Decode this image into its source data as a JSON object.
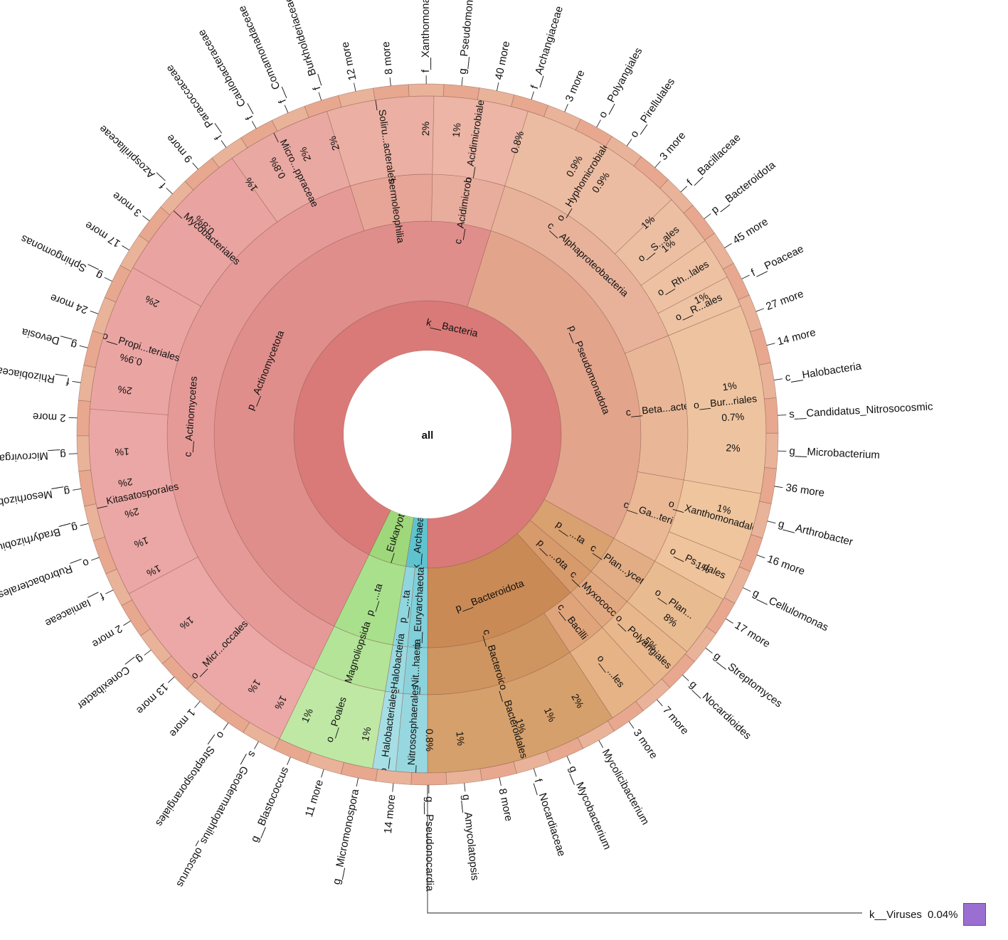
{
  "chart_data": {
    "type": "sunburst",
    "title": "",
    "center_label": "all",
    "rings": [
      [
        {
          "label": "k__Bacteria",
          "value": 92.8,
          "color": "#d97a78"
        },
        {
          "label": "k__Archaea",
          "value": 2.6,
          "color": "#5fc3cf"
        },
        {
          "label": "k__Eukaryota",
          "value": 4.6,
          "color": "#9ed87a"
        }
      ],
      [
        {
          "label": "p__Actinomycetota",
          "value": 47.6,
          "color": "#e08e8b"
        },
        {
          "label": "p__Pseudomonadota",
          "value": 28.3,
          "color": "#e3a48c"
        },
        {
          "label": "p__...ta",
          "value": 3.0,
          "color": "#d9a070"
        },
        {
          "label": "p__...ota",
          "value": 2.2,
          "color": "#d79a6b"
        },
        {
          "label": "p__Bacteroidota",
          "value": 11.7,
          "color": "#c98a55"
        },
        {
          "label": "p__Euryarchaeota",
          "value": 1.5,
          "color": "#7fd0da"
        },
        {
          "label": "p__...ta",
          "value": 1.1,
          "color": "#8fd6de"
        },
        {
          "label": "p__...ta",
          "value": 4.6,
          "color": "#a9e08c"
        }
      ],
      [
        {
          "label": "c__Actinomycetes",
          "value": 38.0,
          "color": "#e69a98"
        },
        {
          "label": "c__Thermoleophilia",
          "value": 5.1,
          "color": "#e7a597"
        },
        {
          "label": "c__Acidimicrobiales",
          "value": 4.5,
          "color": "#e9ad9e"
        },
        {
          "label": "c__Alphaproteobacteria",
          "value": 14.0,
          "color": "#e8b29a"
        },
        {
          "label": "c__Beta...acteria",
          "value": 9.0,
          "color": "#e9b798"
        },
        {
          "label": "c__Ga...teria",
          "value": 5.3,
          "color": "#eab894"
        },
        {
          "label": "c__Plan...ycetota",
          "value": 3.0,
          "color": "#e2ad84"
        },
        {
          "label": "c__Myxococcota",
          "value": 2.2,
          "color": "#e1a880"
        },
        {
          "label": "c__Bacilli",
          "value": 2.5,
          "color": "#dfa47a"
        },
        {
          "label": "c__Bacteroidia",
          "value": 9.2,
          "color": "#cf9560"
        },
        {
          "label": "c__Nit...haeria",
          "value": 1.5,
          "color": "#8bd3dc"
        },
        {
          "label": "c__Halobacteria",
          "value": 1.1,
          "color": "#9adae1"
        },
        {
          "label": "c__Magnoliopsida",
          "value": 4.6,
          "color": "#b3e497"
        }
      ],
      [
        {
          "label": "o__Micr...occales",
          "value": 10.0,
          "color": "#eba8a6"
        },
        {
          "label": "o__Kitasatosporales",
          "value": 9.0,
          "color": "#eba7a5"
        },
        {
          "label": "o__Propi...teriales",
          "value": 7.0,
          "color": "#eaa5a3"
        },
        {
          "label": "o__Mycobacteriales",
          "value": 7.0,
          "color": "#e9a3a1"
        },
        {
          "label": "o__Micro...ppraceae",
          "value": 5.0,
          "color": "#e9a8a2"
        },
        {
          "label": "o__Soliru...acterales",
          "value": 5.1,
          "color": "#ebb0a3"
        },
        {
          "label": "o__Acidimicrobiales",
          "value": 4.5,
          "color": "#ecb5a6"
        },
        {
          "label": "o__Hyphomicrobiales",
          "value": 8.0,
          "color": "#ecbca2"
        },
        {
          "label": "o__S...ales",
          "value": 2.5,
          "color": "#ecbfa3"
        },
        {
          "label": "o__Rh...lales",
          "value": 2.0,
          "color": "#edc1a2"
        },
        {
          "label": "o__R...ales",
          "value": 1.5,
          "color": "#edc3a3"
        },
        {
          "label": "o__Bur...riales",
          "value": 9.0,
          "color": "#eec4a0"
        },
        {
          "label": "o__Xanthomonadales",
          "value": 3.3,
          "color": "#efc59e"
        },
        {
          "label": "o__Ps...dales",
          "value": 2.0,
          "color": "#efc39b"
        },
        {
          "label": "o__Plan...",
          "value": 3.0,
          "color": "#e9bb90"
        },
        {
          "label": "o__Polyangiales",
          "value": 2.2,
          "color": "#e8b78c"
        },
        {
          "label": "o__...les",
          "value": 2.5,
          "color": "#e6b386"
        },
        {
          "label": "o__Bacteroidales",
          "value": 9.2,
          "color": "#d5a06c"
        },
        {
          "label": "o__Nitrososphaerales",
          "value": 1.5,
          "color": "#97d7df"
        },
        {
          "label": "o__Halobacteriales",
          "value": 1.1,
          "color": "#a6dee5"
        },
        {
          "label": "o__Poales",
          "value": 4.6,
          "color": "#bfe8a5"
        }
      ]
    ],
    "outer_labels": [
      {
        "text": "s__Geodermatophilus_obscurus",
        "pct": "1%"
      },
      {
        "text": "o__Streptosporangiales",
        "pct": "1%"
      },
      {
        "text": "1 more",
        "pct": ""
      },
      {
        "text": "13 more",
        "pct": ""
      },
      {
        "text": "g__Conexibacter",
        "pct": "1%"
      },
      {
        "text": "2 more",
        "pct": ""
      },
      {
        "text": "f__Iamiaceae",
        "pct": "1%"
      },
      {
        "text": "o__Rubrobacterales",
        "pct": "1%"
      },
      {
        "text": "g__Bradyrhizobium",
        "pct": "2%"
      },
      {
        "text": "g__Mesorhizobium",
        "pct": "2%"
      },
      {
        "text": "g__Microvirga",
        "pct": "1%"
      },
      {
        "text": "2 more",
        "pct": ""
      },
      {
        "text": "f__Rhizobiaceae",
        "pct": "2%"
      },
      {
        "text": "g__Devosia",
        "pct": "0.9%"
      },
      {
        "text": "24 more",
        "pct": ""
      },
      {
        "text": "g__Sphingomonas",
        "pct": "2%"
      },
      {
        "text": "17 more",
        "pct": ""
      },
      {
        "text": "3 more",
        "pct": ""
      },
      {
        "text": "f__Azospirillaceae",
        "pct": "0.8%"
      },
      {
        "text": "9 more",
        "pct": ""
      },
      {
        "text": "f__Paracoccaceae",
        "pct": "1%"
      },
      {
        "text": "f__Caulobacteraceae",
        "pct": "0.8%"
      },
      {
        "text": "f__Comamonadaceae",
        "pct": "2%"
      },
      {
        "text": "f__Burkholderiaceae",
        "pct": "2%"
      },
      {
        "text": "12 more",
        "pct": ""
      },
      {
        "text": "8 more",
        "pct": ""
      },
      {
        "text": "f__Xanthomonadaceae",
        "pct": "2%"
      },
      {
        "text": "g__Pseudomonas",
        "pct": "1%"
      },
      {
        "text": "40 more",
        "pct": ""
      },
      {
        "text": "f__Archangiaceae",
        "pct": "0.8%"
      },
      {
        "text": "3 more",
        "pct": ""
      },
      {
        "text": "o__Polyangiales",
        "pct": "0.9%"
      },
      {
        "text": "o__Pirellulales",
        "pct": "0.9%"
      },
      {
        "text": "3 more",
        "pct": ""
      },
      {
        "text": "f__Bacillaceae",
        "pct": "1%"
      },
      {
        "text": "p__Bacteroidota",
        "pct": "1%"
      },
      {
        "text": "45 more",
        "pct": ""
      },
      {
        "text": "f__Poaceae",
        "pct": "1%"
      },
      {
        "text": "27 more",
        "pct": ""
      },
      {
        "text": "14 more",
        "pct": ""
      },
      {
        "text": "c__Halobacteria",
        "pct": "1%"
      },
      {
        "text": "s__Candidatus_Nitrosocosmic",
        "pct": "0.7%"
      },
      {
        "text": "g__Microbacterium",
        "pct": "2%"
      },
      {
        "text": "36 more",
        "pct": ""
      },
      {
        "text": "g__Arthrobacter",
        "pct": "1%"
      },
      {
        "text": "16 more",
        "pct": ""
      },
      {
        "text": "g__Cellulomonas",
        "pct": "1%"
      },
      {
        "text": "17 more",
        "pct": ""
      },
      {
        "text": "g__Streptomyces",
        "pct": "8%"
      },
      {
        "text": "g__Nocardioides",
        "pct": "5%"
      },
      {
        "text": "7 more",
        "pct": ""
      },
      {
        "text": "3 more",
        "pct": ""
      },
      {
        "text": "Mycolicibacterium",
        "pct": "2%"
      },
      {
        "text": "g__Mycobacterium",
        "pct": "1%"
      },
      {
        "text": "f__Nocardiaceae",
        "pct": "1%"
      },
      {
        "text": "8 more",
        "pct": ""
      },
      {
        "text": "g__Amycolatopsis",
        "pct": "1%"
      },
      {
        "text": "g__Pseudonocardia",
        "pct": "0.8%"
      },
      {
        "text": "14 more",
        "pct": ""
      },
      {
        "text": "g__Micromonospora",
        "pct": "1%"
      },
      {
        "text": "11 more",
        "pct": ""
      },
      {
        "text": "g__Blastococcus",
        "pct": "1%"
      }
    ],
    "viruses": {
      "label": "k__Viruses",
      "pct": "0.04%",
      "color": "#9b6fd1"
    }
  }
}
